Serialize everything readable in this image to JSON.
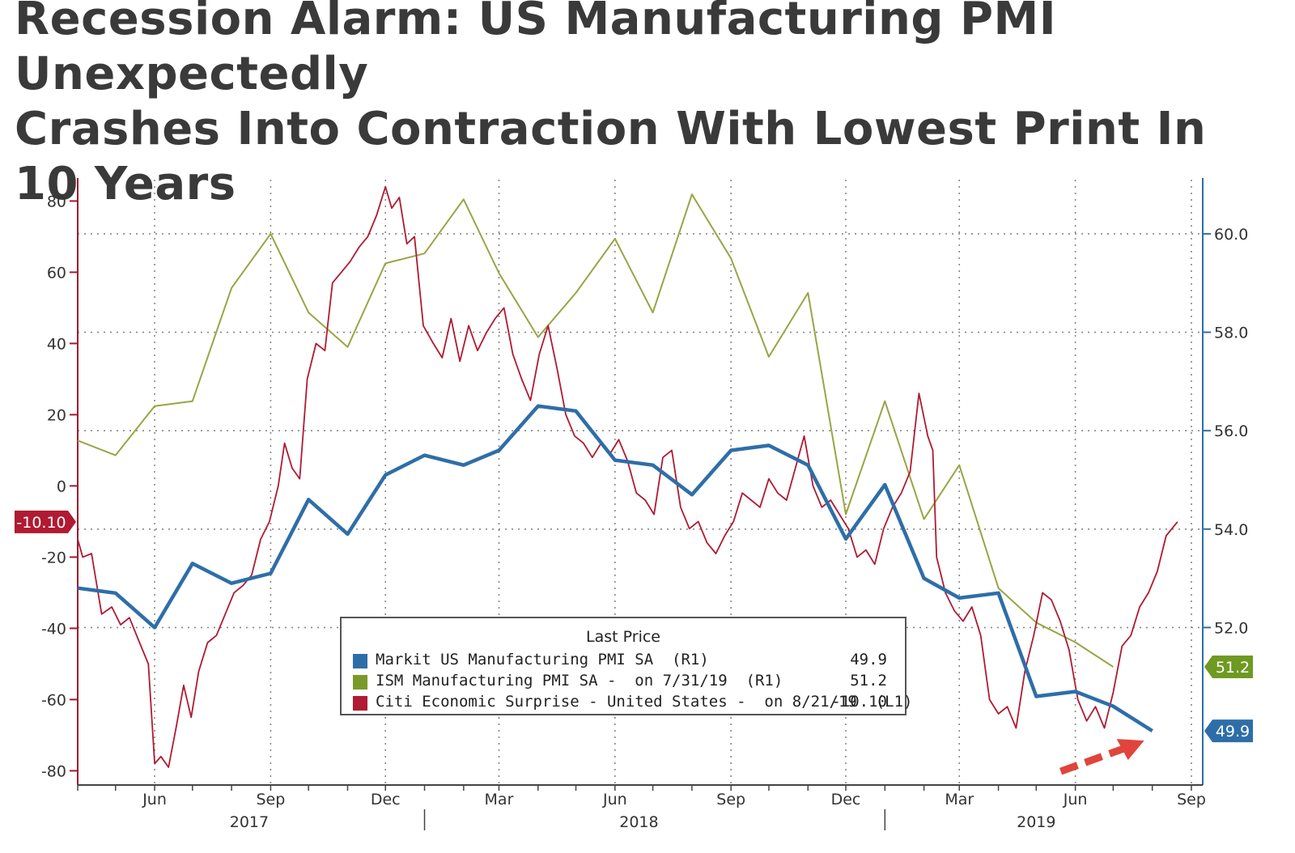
{
  "headline": {
    "line1": "Recession Alarm: US Manufacturing PMI Unexpectedly",
    "line2": "Crashes Into Contraction With Lowest Print In 10 Years"
  },
  "colors": {
    "markit": "#2e6ea8",
    "ism": "#9aa444",
    "citi": "#b01a32",
    "axis_left": "#a01830",
    "axis_right": "#2e6ea8",
    "grid": "#888888",
    "arrow": "#e0443c"
  },
  "chart_data": {
    "type": "line",
    "x_start": "2017-04-01",
    "x_end": "2019-09-10",
    "y_left": {
      "min": -84,
      "max": 86,
      "ticks": [
        80,
        60,
        40,
        20,
        0,
        -20,
        -40,
        -60,
        -80
      ]
    },
    "y_right": {
      "min": 48.8,
      "max": 61.1,
      "ticks": [
        "60.0",
        "58.0",
        "56.0",
        "54.0",
        "52.0"
      ]
    },
    "x_month_ticks": [
      {
        "date": "2017-06-01",
        "label": "Jun"
      },
      {
        "date": "2017-09-01",
        "label": "Sep"
      },
      {
        "date": "2017-12-01",
        "label": "Dec"
      },
      {
        "date": "2018-03-01",
        "label": "Mar"
      },
      {
        "date": "2018-06-01",
        "label": "Jun"
      },
      {
        "date": "2018-09-01",
        "label": "Sep"
      },
      {
        "date": "2018-12-01",
        "label": "Dec"
      },
      {
        "date": "2019-03-01",
        "label": "Mar"
      },
      {
        "date": "2019-06-01",
        "label": "Jun"
      },
      {
        "date": "2019-09-01",
        "label": "Sep"
      }
    ],
    "x_year_labels": [
      {
        "date": "2017-08-15",
        "label": "2017"
      },
      {
        "date": "2018-06-20",
        "label": "2018"
      },
      {
        "date": "2019-05-01",
        "label": "2019"
      }
    ],
    "x_year_dividers": [
      "2018-01-01",
      "2019-01-01"
    ],
    "series": [
      {
        "name": "Markit US Manufacturing PMI SA (R1)",
        "axis": "right",
        "points": [
          [
            "2017-04-01",
            52.8
          ],
          [
            "2017-05-01",
            52.7
          ],
          [
            "2017-06-01",
            52.0
          ],
          [
            "2017-07-01",
            53.3
          ],
          [
            "2017-08-01",
            52.9
          ],
          [
            "2017-09-01",
            53.1
          ],
          [
            "2017-10-01",
            54.6
          ],
          [
            "2017-11-01",
            53.9
          ],
          [
            "2017-12-01",
            55.1
          ],
          [
            "2018-01-01",
            55.5
          ],
          [
            "2018-02-01",
            55.3
          ],
          [
            "2018-03-01",
            55.6
          ],
          [
            "2018-04-01",
            56.5
          ],
          [
            "2018-05-01",
            56.4
          ],
          [
            "2018-06-01",
            55.4
          ],
          [
            "2018-07-01",
            55.3
          ],
          [
            "2018-08-01",
            54.7
          ],
          [
            "2018-09-01",
            55.6
          ],
          [
            "2018-10-01",
            55.7
          ],
          [
            "2018-11-01",
            55.3
          ],
          [
            "2018-12-01",
            53.8
          ],
          [
            "2019-01-01",
            54.9
          ],
          [
            "2019-02-01",
            53.0
          ],
          [
            "2019-03-01",
            52.6
          ],
          [
            "2019-04-01",
            52.7
          ],
          [
            "2019-05-01",
            50.6
          ],
          [
            "2019-06-01",
            50.7
          ],
          [
            "2019-07-01",
            50.4
          ],
          [
            "2019-08-01",
            49.9
          ]
        ]
      },
      {
        "name": "ISM Manufacturing PMI SA - on 7/31/19 (R1)",
        "axis": "right",
        "points": [
          [
            "2017-04-01",
            55.8
          ],
          [
            "2017-05-01",
            55.5
          ],
          [
            "2017-06-01",
            56.5
          ],
          [
            "2017-07-01",
            56.6
          ],
          [
            "2017-08-01",
            58.9
          ],
          [
            "2017-09-01",
            60.0
          ],
          [
            "2017-10-01",
            58.4
          ],
          [
            "2017-11-01",
            57.7
          ],
          [
            "2017-12-01",
            59.4
          ],
          [
            "2018-01-01",
            59.6
          ],
          [
            "2018-02-01",
            60.7
          ],
          [
            "2018-03-01",
            59.2
          ],
          [
            "2018-04-01",
            57.9
          ],
          [
            "2018-05-01",
            58.8
          ],
          [
            "2018-06-01",
            59.9
          ],
          [
            "2018-07-01",
            58.4
          ],
          [
            "2018-08-01",
            60.8
          ],
          [
            "2018-09-01",
            59.5
          ],
          [
            "2018-10-01",
            57.5
          ],
          [
            "2018-11-01",
            58.8
          ],
          [
            "2018-12-01",
            54.3
          ],
          [
            "2019-01-01",
            56.6
          ],
          [
            "2019-02-01",
            54.2
          ],
          [
            "2019-03-01",
            55.3
          ],
          [
            "2019-04-01",
            52.8
          ],
          [
            "2019-05-01",
            52.1
          ],
          [
            "2019-06-01",
            51.7
          ],
          [
            "2019-07-01",
            51.2
          ]
        ]
      },
      {
        "name": "Citi Economic Surprise - United States - on 8/21/19 (L1)",
        "axis": "left",
        "points": [
          [
            "2017-04-01",
            -15
          ],
          [
            "2017-04-05",
            -20
          ],
          [
            "2017-04-12",
            -19
          ],
          [
            "2017-04-20",
            -36
          ],
          [
            "2017-04-28",
            -34
          ],
          [
            "2017-05-05",
            -39
          ],
          [
            "2017-05-12",
            -37
          ],
          [
            "2017-05-20",
            -44
          ],
          [
            "2017-05-27",
            -50
          ],
          [
            "2017-06-01",
            -78
          ],
          [
            "2017-06-06",
            -76
          ],
          [
            "2017-06-12",
            -79
          ],
          [
            "2017-06-18",
            -68
          ],
          [
            "2017-06-24",
            -56
          ],
          [
            "2017-06-30",
            -65
          ],
          [
            "2017-07-06",
            -52
          ],
          [
            "2017-07-13",
            -44
          ],
          [
            "2017-07-20",
            -42
          ],
          [
            "2017-07-27",
            -36
          ],
          [
            "2017-08-03",
            -30
          ],
          [
            "2017-08-10",
            -28
          ],
          [
            "2017-08-17",
            -25
          ],
          [
            "2017-08-24",
            -15
          ],
          [
            "2017-08-31",
            -10
          ],
          [
            "2017-09-07",
            0
          ],
          [
            "2017-09-12",
            12
          ],
          [
            "2017-09-18",
            5
          ],
          [
            "2017-09-24",
            2
          ],
          [
            "2017-09-30",
            30
          ],
          [
            "2017-10-07",
            40
          ],
          [
            "2017-10-14",
            38
          ],
          [
            "2017-10-20",
            57
          ],
          [
            "2017-10-27",
            60
          ],
          [
            "2017-11-03",
            63
          ],
          [
            "2017-11-10",
            67
          ],
          [
            "2017-11-17",
            70
          ],
          [
            "2017-11-24",
            76
          ],
          [
            "2017-12-01",
            84
          ],
          [
            "2017-12-06",
            78
          ],
          [
            "2017-12-12",
            81
          ],
          [
            "2017-12-18",
            68
          ],
          [
            "2017-12-24",
            70
          ],
          [
            "2017-12-31",
            45
          ],
          [
            "2018-01-08",
            40
          ],
          [
            "2018-01-15",
            36
          ],
          [
            "2018-01-22",
            47
          ],
          [
            "2018-01-29",
            35
          ],
          [
            "2018-02-05",
            45
          ],
          [
            "2018-02-12",
            38
          ],
          [
            "2018-02-19",
            43
          ],
          [
            "2018-02-26",
            47
          ],
          [
            "2018-03-05",
            50
          ],
          [
            "2018-03-12",
            37
          ],
          [
            "2018-03-19",
            30
          ],
          [
            "2018-03-26",
            24
          ],
          [
            "2018-04-02",
            37
          ],
          [
            "2018-04-09",
            45
          ],
          [
            "2018-04-16",
            33
          ],
          [
            "2018-04-23",
            20
          ],
          [
            "2018-04-30",
            14
          ],
          [
            "2018-05-07",
            12
          ],
          [
            "2018-05-14",
            8
          ],
          [
            "2018-05-21",
            12
          ],
          [
            "2018-05-28",
            9
          ],
          [
            "2018-06-04",
            13
          ],
          [
            "2018-06-11",
            7
          ],
          [
            "2018-06-18",
            -2
          ],
          [
            "2018-06-25",
            -4
          ],
          [
            "2018-07-02",
            -8
          ],
          [
            "2018-07-09",
            8
          ],
          [
            "2018-07-16",
            10
          ],
          [
            "2018-07-23",
            -6
          ],
          [
            "2018-07-30",
            -12
          ],
          [
            "2018-08-06",
            -10
          ],
          [
            "2018-08-13",
            -16
          ],
          [
            "2018-08-20",
            -19
          ],
          [
            "2018-08-27",
            -14
          ],
          [
            "2018-09-03",
            -10
          ],
          [
            "2018-09-10",
            -2
          ],
          [
            "2018-09-17",
            -4
          ],
          [
            "2018-09-24",
            -6
          ],
          [
            "2018-10-01",
            2
          ],
          [
            "2018-10-08",
            -2
          ],
          [
            "2018-10-15",
            -4
          ],
          [
            "2018-10-22",
            5
          ],
          [
            "2018-10-29",
            14
          ],
          [
            "2018-11-05",
            0
          ],
          [
            "2018-11-12",
            -6
          ],
          [
            "2018-11-19",
            -4
          ],
          [
            "2018-11-26",
            -8
          ],
          [
            "2018-12-03",
            -12
          ],
          [
            "2018-12-10",
            -20
          ],
          [
            "2018-12-17",
            -18
          ],
          [
            "2018-12-24",
            -22
          ],
          [
            "2018-12-31",
            -12
          ],
          [
            "2019-01-07",
            -6
          ],
          [
            "2019-01-14",
            -2
          ],
          [
            "2019-01-21",
            4
          ],
          [
            "2019-01-28",
            26
          ],
          [
            "2019-02-04",
            14
          ],
          [
            "2019-02-08",
            10
          ],
          [
            "2019-02-11",
            -20
          ],
          [
            "2019-02-18",
            -30
          ],
          [
            "2019-02-25",
            -35
          ],
          [
            "2019-03-04",
            -38
          ],
          [
            "2019-03-11",
            -34
          ],
          [
            "2019-03-18",
            -42
          ],
          [
            "2019-03-25",
            -60
          ],
          [
            "2019-04-01",
            -64
          ],
          [
            "2019-04-08",
            -62
          ],
          [
            "2019-04-15",
            -68
          ],
          [
            "2019-04-22",
            -52
          ],
          [
            "2019-04-29",
            -42
          ],
          [
            "2019-05-06",
            -30
          ],
          [
            "2019-05-13",
            -32
          ],
          [
            "2019-05-20",
            -38
          ],
          [
            "2019-05-27",
            -46
          ],
          [
            "2019-06-03",
            -60
          ],
          [
            "2019-06-10",
            -66
          ],
          [
            "2019-06-17",
            -62
          ],
          [
            "2019-06-24",
            -68
          ],
          [
            "2019-07-01",
            -58
          ],
          [
            "2019-07-08",
            -45
          ],
          [
            "2019-07-15",
            -42
          ],
          [
            "2019-07-22",
            -34
          ],
          [
            "2019-07-29",
            -30
          ],
          [
            "2019-08-05",
            -24
          ],
          [
            "2019-08-12",
            -14
          ],
          [
            "2019-08-21",
            -10.1
          ]
        ]
      }
    ]
  },
  "legend": {
    "title": "Last Price",
    "rows": [
      {
        "label": "Markit US Manufacturing PMI SA  (R1)",
        "value": "49.9"
      },
      {
        "label": "ISM Manufacturing PMI SA -  on 7/31/19  (R1)",
        "value": "51.2"
      },
      {
        "label": "Citi Economic Surprise - United States -  on 8/21/19  (L1)",
        "value": "-10.10"
      }
    ]
  },
  "badges": {
    "citi_last": "-10.10",
    "ism_last": "51.2",
    "markit_last": "49.9"
  }
}
